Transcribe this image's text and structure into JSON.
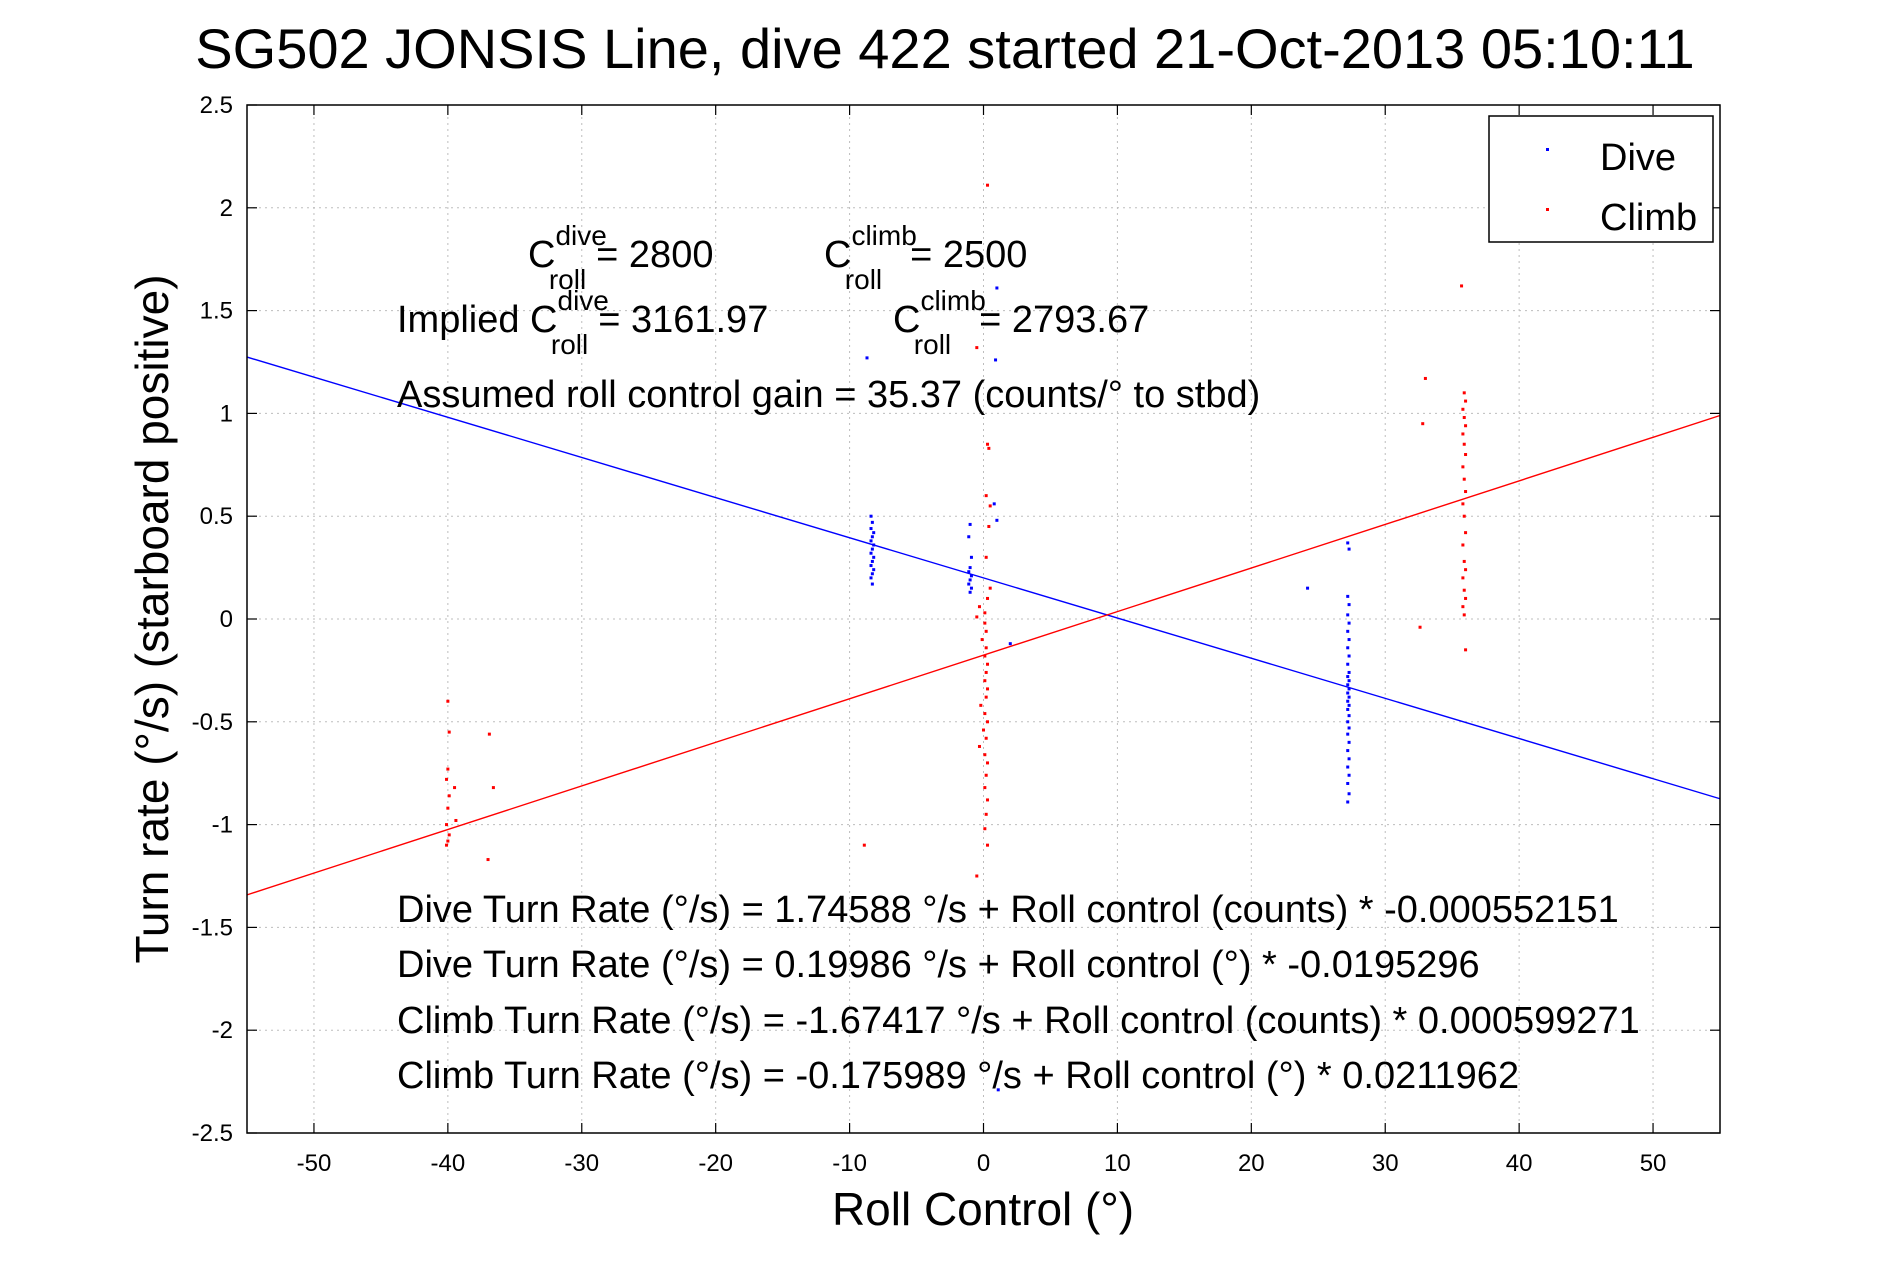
{
  "chart_data": {
    "type": "scatter",
    "title": "SG502 JONSIS Line, dive 422 started 21-Oct-2013 05:10:11",
    "xlabel": "Roll Control (°)",
    "ylabel": "Turn rate (°/s)  (starboard positive)",
    "xlim": [
      -55,
      55
    ],
    "ylim": [
      -2.5,
      2.5
    ],
    "xticks": [
      -50,
      -40,
      -30,
      -20,
      -10,
      0,
      10,
      20,
      30,
      40,
      50
    ],
    "xtick_labels": [
      "-50",
      "-40",
      "-30",
      "-20",
      "-10",
      "0",
      "10",
      "20",
      "30",
      "40",
      "50"
    ],
    "yticks": [
      -2.5,
      -2,
      -1.5,
      -1,
      -0.5,
      0,
      0.5,
      1,
      1.5,
      2,
      2.5
    ],
    "ytick_labels": [
      "-2.5",
      "-2",
      "-1.5",
      "-1",
      "-0.5",
      "0",
      "0.5",
      "1",
      "1.5",
      "2",
      "2.5"
    ],
    "grid": true,
    "legend_position": "top-right",
    "series": [
      {
        "name": "Dive",
        "color": "#0000ff",
        "points": [
          [
            -8.4,
            0.5
          ],
          [
            -8.3,
            0.47
          ],
          [
            -8.4,
            0.44
          ],
          [
            -8.2,
            0.42
          ],
          [
            -8.3,
            0.4
          ],
          [
            -8.4,
            0.38
          ],
          [
            -8.2,
            0.36
          ],
          [
            -8.3,
            0.34
          ],
          [
            -8.4,
            0.32
          ],
          [
            -8.2,
            0.3
          ],
          [
            -8.3,
            0.28
          ],
          [
            -8.4,
            0.26
          ],
          [
            -8.2,
            0.24
          ],
          [
            -8.3,
            0.22
          ],
          [
            -8.4,
            0.2
          ],
          [
            -8.3,
            0.17
          ],
          [
            -8.7,
            1.27
          ],
          [
            -1.0,
            0.46
          ],
          [
            -1.1,
            0.4
          ],
          [
            -0.9,
            0.3
          ],
          [
            -1.0,
            0.25
          ],
          [
            -1.1,
            0.23
          ],
          [
            -0.9,
            0.21
          ],
          [
            -1.0,
            0.19
          ],
          [
            -1.1,
            0.17
          ],
          [
            -0.9,
            0.15
          ],
          [
            -1.0,
            0.13
          ],
          [
            0.8,
            0.56
          ],
          [
            1.0,
            0.48
          ],
          [
            0.9,
            1.26
          ],
          [
            1.0,
            1.61
          ],
          [
            2.0,
            -0.12
          ],
          [
            1.1,
            -2.29
          ],
          [
            24.2,
            0.15
          ],
          [
            27.2,
            0.37
          ],
          [
            27.3,
            0.34
          ],
          [
            27.2,
            0.11
          ],
          [
            27.3,
            0.07
          ],
          [
            27.2,
            0.02
          ],
          [
            27.3,
            -0.02
          ],
          [
            27.2,
            -0.06
          ],
          [
            27.3,
            -0.1
          ],
          [
            27.2,
            -0.14
          ],
          [
            27.3,
            -0.18
          ],
          [
            27.2,
            -0.22
          ],
          [
            27.3,
            -0.26
          ],
          [
            27.2,
            -0.28
          ],
          [
            27.3,
            -0.3
          ],
          [
            27.2,
            -0.32
          ],
          [
            27.3,
            -0.34
          ],
          [
            27.2,
            -0.36
          ],
          [
            27.3,
            -0.38
          ],
          [
            27.2,
            -0.4
          ],
          [
            27.3,
            -0.42
          ],
          [
            27.2,
            -0.44
          ],
          [
            27.3,
            -0.47
          ],
          [
            27.2,
            -0.5
          ],
          [
            27.3,
            -0.53
          ],
          [
            27.2,
            -0.56
          ],
          [
            27.3,
            -0.6
          ],
          [
            27.2,
            -0.64
          ],
          [
            27.3,
            -0.68
          ],
          [
            27.2,
            -0.72
          ],
          [
            27.3,
            -0.76
          ],
          [
            27.2,
            -0.8
          ],
          [
            27.3,
            -0.85
          ],
          [
            27.2,
            -0.89
          ]
        ]
      },
      {
        "name": "Climb",
        "color": "#ff0000",
        "points": [
          [
            -40.0,
            -0.4
          ],
          [
            -39.9,
            -0.55
          ],
          [
            -40.0,
            -0.73
          ],
          [
            -40.1,
            -0.78
          ],
          [
            -39.9,
            -0.86
          ],
          [
            -40.0,
            -0.92
          ],
          [
            -40.1,
            -1.0
          ],
          [
            -39.9,
            -1.05
          ],
          [
            -40.0,
            -1.08
          ],
          [
            -40.1,
            -1.1
          ],
          [
            -39.5,
            -0.82
          ],
          [
            -39.4,
            -0.98
          ],
          [
            -36.9,
            -0.56
          ],
          [
            -36.6,
            -0.82
          ],
          [
            -37.0,
            -1.17
          ],
          [
            -8.9,
            -1.1
          ],
          [
            0.3,
            2.11
          ],
          [
            -0.5,
            1.32
          ],
          [
            0.5,
            0.55
          ],
          [
            0.3,
            0.85
          ],
          [
            0.4,
            0.83
          ],
          [
            0.2,
            0.6
          ],
          [
            0.4,
            0.45
          ],
          [
            0.2,
            0.3
          ],
          [
            0.5,
            0.15
          ],
          [
            0.3,
            0.1
          ],
          [
            -0.3,
            0.06
          ],
          [
            0.1,
            0.03
          ],
          [
            -0.5,
            0.01
          ],
          [
            0.1,
            -0.02
          ],
          [
            0.2,
            -0.06
          ],
          [
            -0.1,
            -0.1
          ],
          [
            0.2,
            -0.14
          ],
          [
            0.1,
            -0.18
          ],
          [
            0.3,
            -0.22
          ],
          [
            0.2,
            -0.26
          ],
          [
            0.1,
            -0.3
          ],
          [
            0.3,
            -0.34
          ],
          [
            0.2,
            -0.38
          ],
          [
            -0.2,
            -0.42
          ],
          [
            0.1,
            -0.46
          ],
          [
            0.3,
            -0.5
          ],
          [
            0.0,
            -0.54
          ],
          [
            0.2,
            -0.58
          ],
          [
            -0.3,
            -0.62
          ],
          [
            0.1,
            -0.66
          ],
          [
            0.3,
            -0.7
          ],
          [
            0.2,
            -0.76
          ],
          [
            0.1,
            -0.82
          ],
          [
            0.3,
            -0.88
          ],
          [
            0.2,
            -0.95
          ],
          [
            0.1,
            -1.02
          ],
          [
            0.3,
            -1.1
          ],
          [
            -0.5,
            -1.25
          ],
          [
            32.6,
            -0.04
          ],
          [
            32.8,
            0.95
          ],
          [
            33.0,
            1.17
          ],
          [
            35.7,
            1.62
          ],
          [
            35.9,
            1.1
          ],
          [
            36.0,
            1.06
          ],
          [
            35.8,
            1.02
          ],
          [
            35.9,
            0.98
          ],
          [
            36.0,
            0.94
          ],
          [
            35.8,
            0.9
          ],
          [
            35.9,
            0.85
          ],
          [
            36.0,
            0.8
          ],
          [
            35.8,
            0.74
          ],
          [
            35.9,
            0.68
          ],
          [
            36.0,
            0.62
          ],
          [
            35.8,
            0.56
          ],
          [
            35.9,
            0.5
          ],
          [
            36.0,
            0.42
          ],
          [
            35.8,
            0.36
          ],
          [
            35.9,
            0.28
          ],
          [
            36.0,
            0.24
          ],
          [
            35.8,
            0.2
          ],
          [
            35.9,
            0.14
          ],
          [
            36.0,
            0.1
          ],
          [
            35.8,
            0.06
          ],
          [
            35.9,
            0.02
          ],
          [
            36.0,
            -0.15
          ]
        ]
      }
    ],
    "fit_lines": [
      {
        "name": "Dive fit",
        "color": "#0000ff",
        "intercept": 0.19986,
        "slope": -0.0195296
      },
      {
        "name": "Climb fit",
        "color": "#ff0000",
        "intercept": -0.175989,
        "slope": 0.0211962
      }
    ],
    "annotations": {
      "c_sym": "C",
      "sub_roll": "roll",
      "sup_dive": "dive",
      "sup_climb": "climb",
      "c_dive_value": "= 2800",
      "c_climb_value": "= 2500",
      "implied_prefix": "Implied C",
      "implied_dive_value": "= 3161.97",
      "implied_climb_value": "= 2793.67",
      "assumed_gain": "Assumed roll control gain = 35.37 (counts/° to stbd)",
      "eq1": "Dive Turn Rate (°/s) = 1.74588 °/s + Roll control (counts) * -0.000552151",
      "eq2": "Dive Turn Rate (°/s) = 0.19986 °/s + Roll control (°) * -0.0195296",
      "eq3": "Climb Turn Rate (°/s) = -1.67417 °/s + Roll control (counts) * 0.000599271",
      "eq4": "Climb Turn Rate (°/s) = -0.175989 °/s + Roll control (°) * 0.0211962"
    }
  }
}
